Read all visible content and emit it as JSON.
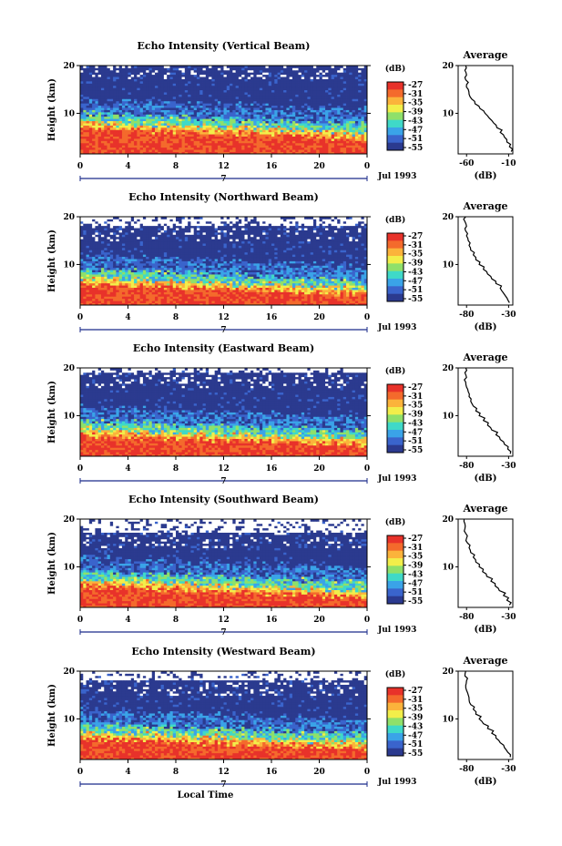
{
  "chart_data": [
    {
      "type": "heatmap",
      "title": "Echo Intensity (Vertical Beam)",
      "ylabel": "Height (km)",
      "x_ticks": [
        "0",
        "4",
        "8",
        "12",
        "16",
        "20",
        "0"
      ],
      "xlim": [
        0,
        24
      ],
      "y_ticks": [
        "20",
        "10"
      ],
      "ylim": [
        1.5,
        20
      ],
      "date_label": "Jul 1993",
      "day_label": "7",
      "colorbar": {
        "label": "(dB)",
        "ticks": [
          "-27",
          "-31",
          "-35",
          "-39",
          "-43",
          "-47",
          "-51",
          "-55"
        ]
      },
      "bands": [
        {
          "from_km": 1.5,
          "to_km": 7,
          "level_db": -27
        },
        {
          "from_km": 7,
          "to_km": 10,
          "level_db": -39
        },
        {
          "from_km": 10,
          "to_km": 14,
          "level_db": -51
        },
        {
          "from_km": 14,
          "to_km": 20,
          "level_db": -55
        }
      ],
      "profile": {
        "title": "Average",
        "xlabel": "(dB)",
        "x_ticks": [
          "-60",
          "-10"
        ],
        "xlim": [
          -70,
          -5
        ],
        "y_ticks": [
          "20",
          "10"
        ],
        "ylim": [
          1.5,
          20
        ],
        "x_db": [
          -7,
          -9,
          -12,
          -15,
          -20,
          -24,
          -28,
          -33,
          -38,
          -44,
          -50,
          -54,
          -57,
          -58,
          -60,
          -61,
          -60,
          -62,
          -61
        ],
        "y_km": [
          2,
          3,
          4,
          5,
          6,
          7,
          8,
          9,
          10,
          11,
          12,
          13,
          14,
          15,
          16,
          17,
          18,
          19,
          20
        ]
      }
    },
    {
      "type": "heatmap",
      "title": "Echo Intensity (Northward Beam)",
      "ylabel": "Height (km)",
      "x_ticks": [
        "0",
        "4",
        "8",
        "12",
        "16",
        "20",
        "0"
      ],
      "xlim": [
        0,
        24
      ],
      "y_ticks": [
        "20",
        "10"
      ],
      "ylim": [
        1.5,
        20
      ],
      "date_label": "Jul 1993",
      "day_label": "7",
      "colorbar": {
        "label": "(dB)",
        "ticks": [
          "-27",
          "-31",
          "-35",
          "-39",
          "-43",
          "-47",
          "-51",
          "-55"
        ]
      },
      "bands": [
        {
          "from_km": 1.5,
          "to_km": 6,
          "level_db": -27
        },
        {
          "from_km": 6,
          "to_km": 9,
          "level_db": -39
        },
        {
          "from_km": 9,
          "to_km": 18,
          "level_db": -55
        }
      ],
      "profile": {
        "title": "Average",
        "xlabel": "(dB)",
        "x_ticks": [
          "-80",
          "-30"
        ],
        "xlim": [
          -90,
          -25
        ],
        "y_ticks": [
          "20",
          "10"
        ],
        "ylim": [
          1.5,
          20
        ],
        "x_db": [
          -29,
          -32,
          -36,
          -40,
          -45,
          -50,
          -55,
          -60,
          -65,
          -69,
          -72,
          -75,
          -77,
          -78,
          -80,
          -81,
          -80,
          -82,
          -81
        ],
        "y_km": [
          2,
          3,
          4,
          5,
          6,
          7,
          8,
          9,
          10,
          11,
          12,
          13,
          14,
          15,
          16,
          17,
          18,
          19,
          20
        ]
      }
    },
    {
      "type": "heatmap",
      "title": "Echo Intensity (Eastward Beam)",
      "ylabel": "Height (km)",
      "x_ticks": [
        "0",
        "4",
        "8",
        "12",
        "16",
        "20",
        "0"
      ],
      "xlim": [
        0,
        24
      ],
      "y_ticks": [
        "20",
        "10"
      ],
      "ylim": [
        1.5,
        20
      ],
      "date_label": "Jul 1993",
      "day_label": "7",
      "colorbar": {
        "label": "(dB)",
        "ticks": [
          "-27",
          "-31",
          "-35",
          "-39",
          "-43",
          "-47",
          "-51",
          "-55"
        ]
      },
      "bands": [
        {
          "from_km": 1.5,
          "to_km": 6,
          "level_db": -27
        },
        {
          "from_km": 6,
          "to_km": 9,
          "level_db": -39
        },
        {
          "from_km": 9,
          "to_km": 19,
          "level_db": -55
        }
      ],
      "profile": {
        "title": "Average",
        "xlabel": "(dB)",
        "x_ticks": [
          "-80",
          "-30"
        ],
        "xlim": [
          -90,
          -25
        ],
        "y_ticks": [
          "20",
          "10"
        ],
        "ylim": [
          1.5,
          20
        ],
        "x_db": [
          -28,
          -31,
          -35,
          -40,
          -45,
          -50,
          -55,
          -60,
          -65,
          -69,
          -72,
          -75,
          -77,
          -78,
          -80,
          -81,
          -80,
          -82,
          -81
        ],
        "y_km": [
          2,
          3,
          4,
          5,
          6,
          7,
          8,
          9,
          10,
          11,
          12,
          13,
          14,
          15,
          16,
          17,
          18,
          19,
          20
        ]
      }
    },
    {
      "type": "heatmap",
      "title": "Echo Intensity (Southward Beam)",
      "ylabel": "Height (km)",
      "x_ticks": [
        "0",
        "4",
        "8",
        "12",
        "16",
        "20",
        "0"
      ],
      "xlim": [
        0,
        24
      ],
      "y_ticks": [
        "20",
        "10"
      ],
      "ylim": [
        1.5,
        20
      ],
      "date_label": "Jul 1993",
      "day_label": "7",
      "colorbar": {
        "label": "(dB)",
        "ticks": [
          "-27",
          "-31",
          "-35",
          "-39",
          "-43",
          "-47",
          "-51",
          "-55"
        ]
      },
      "bands": [
        {
          "from_km": 1.5,
          "to_km": 6,
          "level_db": -27
        },
        {
          "from_km": 6,
          "to_km": 9,
          "level_db": -39
        },
        {
          "from_km": 9,
          "to_km": 17,
          "level_db": -55
        }
      ],
      "profile": {
        "title": "Average",
        "xlabel": "(dB)",
        "x_ticks": [
          "-80",
          "-30"
        ],
        "xlim": [
          -90,
          -25
        ],
        "y_ticks": [
          "20",
          "10"
        ],
        "ylim": [
          1.5,
          20
        ],
        "x_db": [
          -29,
          -32,
          -36,
          -41,
          -46,
          -51,
          -56,
          -61,
          -65,
          -69,
          -72,
          -75,
          -77,
          -79,
          -80,
          -81,
          -82,
          -82,
          -83
        ],
        "y_km": [
          2,
          3,
          4,
          5,
          6,
          7,
          8,
          9,
          10,
          11,
          12,
          13,
          14,
          15,
          16,
          17,
          18,
          19,
          20
        ]
      }
    },
    {
      "type": "heatmap",
      "title": "Echo Intensity (Westward Beam)",
      "ylabel": "Height (km)",
      "xlabel": "Local Time",
      "x_ticks": [
        "0",
        "4",
        "8",
        "12",
        "16",
        "20",
        "0"
      ],
      "xlim": [
        0,
        24
      ],
      "y_ticks": [
        "20",
        "10"
      ],
      "ylim": [
        1.5,
        20
      ],
      "date_label": "Jul 1993",
      "day_label": "7",
      "colorbar": {
        "label": "(dB)",
        "ticks": [
          "-27",
          "-31",
          "-35",
          "-39",
          "-43",
          "-47",
          "-51",
          "-55"
        ]
      },
      "bands": [
        {
          "from_km": 1.5,
          "to_km": 6,
          "level_db": -27
        },
        {
          "from_km": 6,
          "to_km": 9,
          "level_db": -39
        },
        {
          "from_km": 9,
          "to_km": 18,
          "level_db": -55
        }
      ],
      "profile": {
        "title": "Average",
        "xlabel": "(dB)",
        "x_ticks": [
          "-80",
          "-30"
        ],
        "xlim": [
          -90,
          -25
        ],
        "y_ticks": [
          "20",
          "10"
        ],
        "ylim": [
          1.5,
          20
        ],
        "x_db": [
          -28,
          -31,
          -35,
          -40,
          -45,
          -50,
          -55,
          -60,
          -65,
          -69,
          -72,
          -75,
          -77,
          -78,
          -80,
          -81,
          -80,
          -82,
          -81
        ],
        "y_km": [
          2,
          3,
          4,
          5,
          6,
          7,
          8,
          9,
          10,
          11,
          12,
          13,
          14,
          15,
          16,
          17,
          18,
          19,
          20
        ]
      }
    }
  ],
  "colors": {
    "scale": [
      "#e8322a",
      "#f46a2c",
      "#fbb33b",
      "#f2ee4a",
      "#8fe06a",
      "#3fd9c8",
      "#3aa3e8",
      "#3a64cc",
      "#2b3a8f"
    ],
    "profile_line": "#000000"
  }
}
